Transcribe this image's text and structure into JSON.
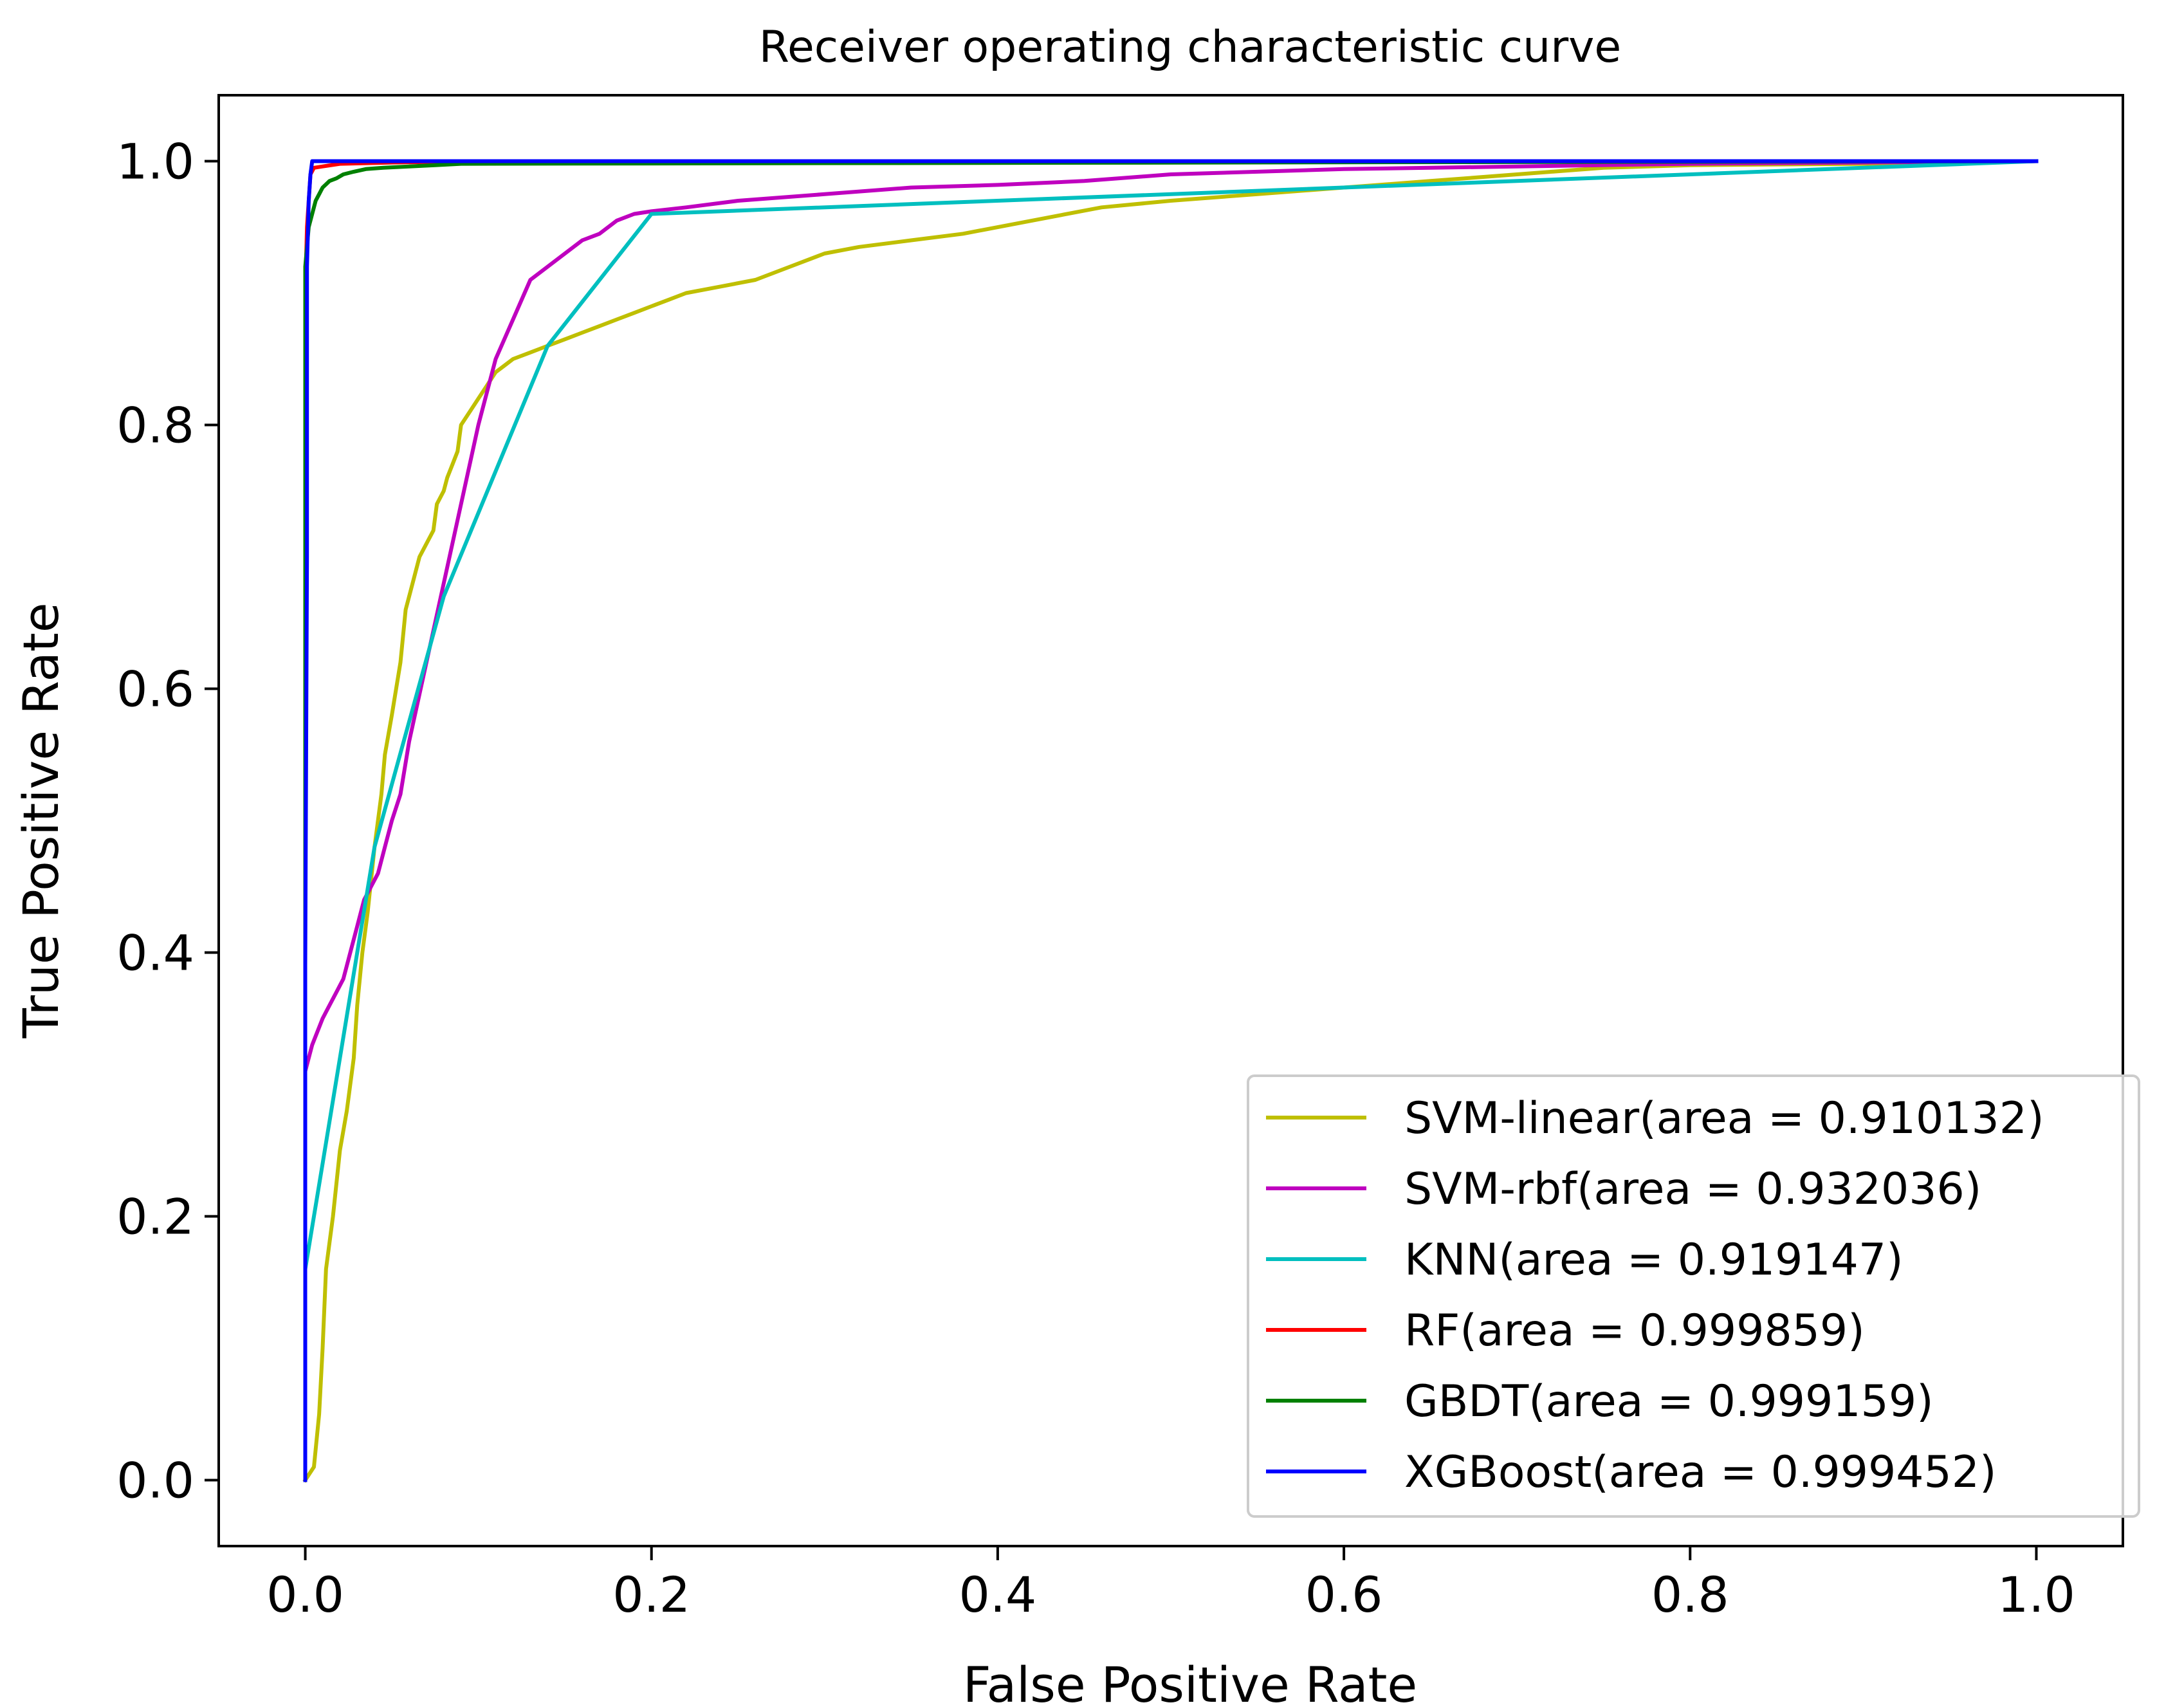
{
  "chart_data": {
    "type": "line",
    "title": "Receiver operating characteristic curve",
    "xlabel": "False Positive Rate",
    "ylabel": "True Positive Rate",
    "xlim": [
      -0.05,
      1.05
    ],
    "ylim": [
      -0.05,
      1.05
    ],
    "xticks": [
      0.0,
      0.2,
      0.4,
      0.6,
      0.8,
      1.0
    ],
    "yticks": [
      0.0,
      0.2,
      0.4,
      0.6,
      0.8,
      1.0
    ],
    "xtick_labels": [
      "0.0",
      "0.2",
      "0.4",
      "0.6",
      "0.8",
      "1.0"
    ],
    "ytick_labels": [
      "0.0",
      "0.2",
      "0.4",
      "0.6",
      "0.8",
      "1.0"
    ],
    "grid": false,
    "legend_position": "lower-right",
    "series": [
      {
        "name": "SVM-linear(area = 0.910132)",
        "color": "#bfbf00",
        "x": [
          0.0,
          0.005,
          0.008,
          0.01,
          0.012,
          0.016,
          0.02,
          0.024,
          0.028,
          0.03,
          0.033,
          0.036,
          0.04,
          0.044,
          0.046,
          0.05,
          0.055,
          0.058,
          0.062,
          0.066,
          0.07,
          0.074,
          0.076,
          0.08,
          0.082,
          0.085,
          0.088,
          0.09,
          0.095,
          0.1,
          0.105,
          0.11,
          0.115,
          0.12,
          0.13,
          0.14,
          0.15,
          0.16,
          0.17,
          0.18,
          0.19,
          0.2,
          0.21,
          0.22,
          0.24,
          0.26,
          0.28,
          0.3,
          0.32,
          0.35,
          0.38,
          0.42,
          0.46,
          0.5,
          0.55,
          0.6,
          0.65,
          0.7,
          0.75,
          0.8,
          0.9,
          1.0
        ],
        "y": [
          0.0,
          0.01,
          0.05,
          0.1,
          0.16,
          0.2,
          0.25,
          0.28,
          0.32,
          0.36,
          0.4,
          0.43,
          0.48,
          0.52,
          0.55,
          0.58,
          0.62,
          0.66,
          0.68,
          0.7,
          0.71,
          0.72,
          0.74,
          0.75,
          0.76,
          0.77,
          0.78,
          0.8,
          0.81,
          0.82,
          0.83,
          0.84,
          0.845,
          0.85,
          0.855,
          0.86,
          0.865,
          0.87,
          0.875,
          0.88,
          0.885,
          0.89,
          0.895,
          0.9,
          0.905,
          0.91,
          0.92,
          0.93,
          0.935,
          0.94,
          0.945,
          0.955,
          0.965,
          0.97,
          0.975,
          0.98,
          0.985,
          0.99,
          0.995,
          0.997,
          0.998,
          1.0
        ]
      },
      {
        "name": "SVM-rbf(area = 0.932036)",
        "color": "#bf00bf",
        "x": [
          0.0,
          0.0,
          0.004,
          0.01,
          0.014,
          0.018,
          0.022,
          0.026,
          0.03,
          0.034,
          0.038,
          0.042,
          0.046,
          0.05,
          0.055,
          0.06,
          0.07,
          0.08,
          0.09,
          0.1,
          0.11,
          0.12,
          0.13,
          0.14,
          0.15,
          0.16,
          0.17,
          0.18,
          0.19,
          0.2,
          0.22,
          0.25,
          0.3,
          0.35,
          0.4,
          0.45,
          0.5,
          0.55,
          0.6,
          0.65,
          0.7,
          0.8,
          0.9,
          1.0
        ],
        "y": [
          0.0,
          0.31,
          0.33,
          0.35,
          0.36,
          0.37,
          0.38,
          0.4,
          0.42,
          0.44,
          0.45,
          0.46,
          0.48,
          0.5,
          0.52,
          0.56,
          0.62,
          0.68,
          0.74,
          0.8,
          0.85,
          0.88,
          0.91,
          0.92,
          0.93,
          0.94,
          0.945,
          0.955,
          0.96,
          0.962,
          0.965,
          0.97,
          0.975,
          0.98,
          0.982,
          0.985,
          0.99,
          0.992,
          0.994,
          0.995,
          0.996,
          0.998,
          0.999,
          1.0
        ]
      },
      {
        "name": "KNN(area = 0.919147)",
        "color": "#00bfbf",
        "x": [
          0.0,
          0.0,
          0.01,
          0.04,
          0.08,
          0.14,
          0.2,
          1.0
        ],
        "y": [
          0.0,
          0.16,
          0.24,
          0.48,
          0.67,
          0.86,
          0.96,
          1.0
        ]
      },
      {
        "name": "RF(area = 0.999859)",
        "color": "#ff0000",
        "x": [
          0.0,
          0.0,
          0.001,
          0.002,
          0.003,
          0.005,
          0.01,
          0.02,
          0.05,
          0.1,
          1.0
        ],
        "y": [
          0.0,
          0.9,
          0.95,
          0.97,
          0.99,
          0.995,
          0.996,
          0.998,
          0.999,
          1.0,
          1.0
        ]
      },
      {
        "name": "GBDT(area = 0.999159)",
        "color": "#008000",
        "x": [
          0.0,
          0.0,
          0.002,
          0.004,
          0.006,
          0.008,
          0.01,
          0.014,
          0.018,
          0.022,
          0.028,
          0.035,
          0.045,
          0.06,
          0.075,
          0.09,
          1.0
        ],
        "y": [
          0.0,
          0.92,
          0.95,
          0.96,
          0.97,
          0.975,
          0.98,
          0.985,
          0.987,
          0.99,
          0.992,
          0.994,
          0.995,
          0.996,
          0.997,
          0.998,
          1.0
        ]
      },
      {
        "name": "XGBoost(area = 0.999452)",
        "color": "#0000ff",
        "x": [
          0.0,
          0.0,
          0.001,
          0.001,
          0.002,
          0.003,
          0.004,
          1.0
        ],
        "y": [
          0.0,
          0.39,
          0.7,
          0.92,
          0.97,
          0.99,
          1.0,
          1.0
        ]
      }
    ]
  }
}
